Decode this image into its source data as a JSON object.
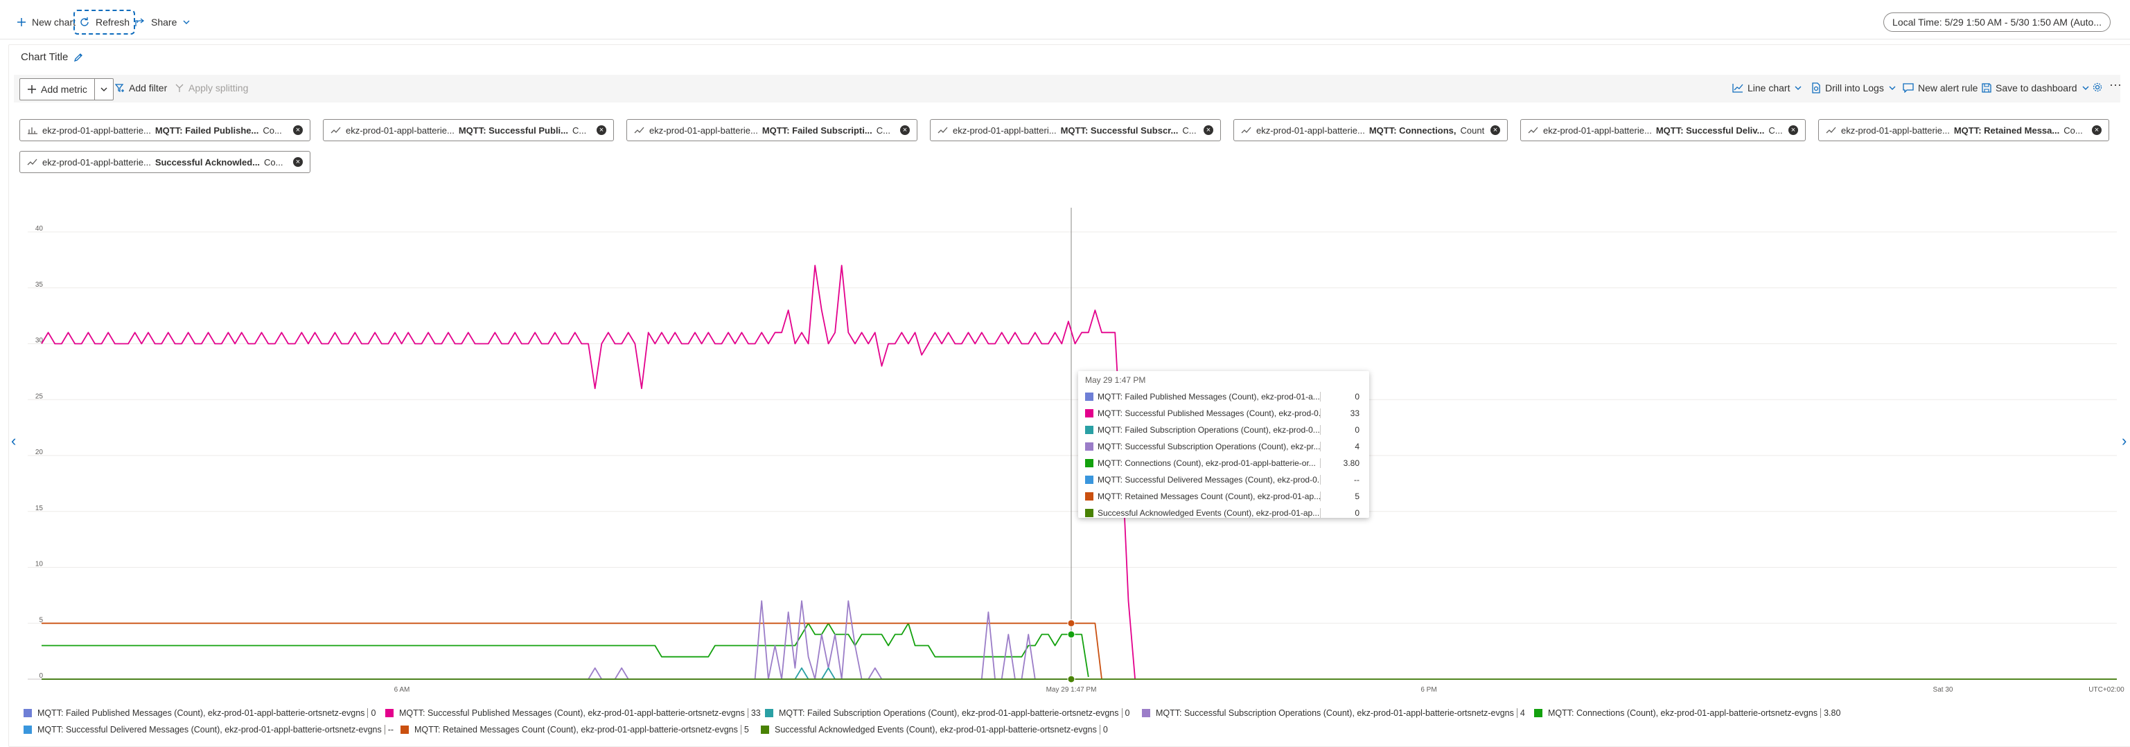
{
  "toolbar": {
    "new_chart": "New chart",
    "refresh": "Refresh",
    "share": "Share",
    "local_time": "Local Time: 5/29 1:50 AM - 5/30 1:50 AM (Auto..."
  },
  "chart": {
    "title": "Chart Title"
  },
  "commands": {
    "add_metric": "Add metric",
    "add_filter": "Add filter",
    "apply_splitting": "Apply splitting",
    "line_chart": "Line chart",
    "drill_into_logs": "Drill into Logs",
    "new_alert_rule": "New alert rule",
    "save_to_dashboard": "Save to dashboard"
  },
  "metric_pills": [
    {
      "source": "ekz-prod-01-appl-batterie...",
      "metric": "MQTT: Failed Publishe...",
      "agg": "Co...",
      "icon": "metric-bar-icon"
    },
    {
      "source": "ekz-prod-01-appl-batterie...",
      "metric": "MQTT: Successful Publi...",
      "agg": "C...",
      "icon": "metric-line-icon"
    },
    {
      "source": "ekz-prod-01-appl-batterie...",
      "metric": "MQTT: Failed Subscripti...",
      "agg": "C...",
      "icon": "metric-line-icon"
    },
    {
      "source": "ekz-prod-01-appl-batteri...",
      "metric": "MQTT: Successful Subscr...",
      "agg": "C...",
      "icon": "metric-line-icon"
    },
    {
      "source": "ekz-prod-01-appl-batterie...",
      "metric": "MQTT: Connections,",
      "agg": "Count",
      "icon": "metric-line-icon"
    },
    {
      "source": "ekz-prod-01-appl-batterie...",
      "metric": "MQTT: Successful Deliv...",
      "agg": "C...",
      "icon": "metric-line-icon"
    },
    {
      "source": "ekz-prod-01-appl-batterie...",
      "metric": "MQTT: Retained Messa...",
      "agg": "Co...",
      "icon": "metric-line-icon"
    },
    {
      "source": "ekz-prod-01-appl-batterie...",
      "metric": "Successful Acknowled...",
      "agg": "Co...",
      "icon": "metric-line-icon"
    }
  ],
  "colors": {
    "failed_published": "#6e7fd6",
    "successful_published": "#e3008c",
    "failed_subscription": "#2aa0a4",
    "successful_subscription": "#9b7dc8",
    "connections": "#13a10e",
    "successful_delivered": "#3a96dd",
    "retained": "#ca5010",
    "acknowledged": "#498205",
    "accent": "#0f6cbd"
  },
  "chart_data": {
    "type": "line",
    "y_ticks": [
      "0",
      "5",
      "10",
      "15",
      "20",
      "25",
      "30",
      "35",
      "40"
    ],
    "x_ticks": [
      "6 AM",
      "May 29 1:47 PM",
      "6 PM",
      "Sat 30",
      "UTC+02:00"
    ],
    "ylim": [
      0,
      42
    ],
    "grid": true,
    "hover_x": "May 29 1:47 PM",
    "series": [
      {
        "name": "MQTT: Successful Published Messages (Count), ekz-prod-01-appl-batterie-ortsnetz-evgns",
        "color": "#e3008c",
        "values": [
          30,
          31,
          30,
          30,
          31,
          30,
          30,
          31,
          30,
          30,
          31,
          30,
          30,
          30,
          31,
          30,
          31,
          30,
          30,
          31,
          30,
          30,
          31,
          30,
          30,
          31,
          30,
          30,
          31,
          30,
          31,
          30,
          30,
          31,
          30,
          30,
          31,
          30,
          30,
          31,
          30,
          31,
          30,
          30,
          31,
          30,
          30,
          31,
          30,
          30,
          31,
          30,
          30,
          31,
          30,
          31,
          30,
          30,
          31,
          30,
          30,
          31,
          30,
          30,
          31,
          30,
          30,
          30,
          31,
          30,
          30,
          31,
          30,
          30,
          31,
          30,
          30,
          31,
          30,
          30,
          31,
          30,
          30,
          26,
          30,
          31,
          30,
          30,
          31,
          30,
          26,
          31,
          30,
          31,
          30,
          31,
          30,
          30,
          31,
          30,
          31,
          30,
          30,
          31,
          30,
          31,
          30,
          30,
          31,
          30,
          31,
          31,
          33,
          30,
          31,
          30,
          37,
          33,
          30,
          31,
          37,
          31,
          30,
          31,
          30,
          31,
          28,
          30,
          30,
          31,
          30,
          31,
          29,
          30,
          31,
          30,
          31,
          30,
          30,
          31,
          30,
          31,
          30,
          30,
          31,
          30,
          31,
          30,
          30,
          31,
          30,
          30,
          31,
          30,
          32,
          30,
          31,
          31,
          33,
          31,
          31,
          31,
          20,
          7,
          0
        ]
      },
      {
        "name": "MQTT: Connections (Count), ekz-prod-01-appl-batterie-ortsnetz-evgns",
        "color": "#13a10e",
        "values": [
          3,
          3,
          3,
          3,
          3,
          3,
          3,
          3,
          3,
          3,
          3,
          3,
          3,
          3,
          3,
          3,
          3,
          3,
          3,
          3,
          3,
          3,
          3,
          3,
          3,
          3,
          3,
          3,
          3,
          3,
          3,
          3,
          3,
          3,
          3,
          3,
          3,
          3,
          3,
          3,
          3,
          3,
          3,
          3,
          3,
          3,
          3,
          3,
          3,
          3,
          3,
          3,
          3,
          3,
          3,
          3,
          3,
          3,
          3,
          3,
          3,
          3,
          3,
          3,
          3,
          3,
          3,
          3,
          3,
          3,
          3,
          3,
          3,
          3,
          3,
          3,
          3,
          3,
          3,
          3,
          3,
          3,
          3,
          3,
          3,
          3,
          3,
          3,
          3,
          3,
          3,
          3,
          3,
          2,
          2,
          2,
          2,
          2,
          2,
          2,
          2,
          3,
          3,
          3,
          3,
          3,
          3,
          3,
          3,
          3,
          3,
          3,
          3,
          3,
          4,
          5,
          4,
          4,
          5,
          4,
          4,
          4,
          3,
          4,
          4,
          4,
          4,
          3,
          4,
          4,
          5,
          3,
          3,
          3,
          2,
          2,
          2,
          2,
          2,
          2,
          2,
          2,
          2,
          2,
          2,
          2,
          2,
          2,
          3,
          3,
          4,
          4,
          3,
          4,
          4,
          4,
          4,
          0.2
        ]
      },
      {
        "name": "MQTT: Retained Messages Count (Count), ekz-prod-01-appl-batterie-ortsnetz-evgns",
        "color": "#ca5010",
        "values": [
          5,
          5,
          5,
          5,
          5,
          5,
          5,
          5,
          5,
          5,
          5,
          5,
          5,
          5,
          5,
          5,
          5,
          5,
          5,
          5,
          5,
          5,
          5,
          5,
          5,
          5,
          5,
          5,
          5,
          5,
          5,
          5,
          5,
          5,
          5,
          5,
          5,
          5,
          5,
          5,
          5,
          5,
          5,
          5,
          5,
          5,
          5,
          5,
          5,
          5,
          5,
          5,
          5,
          5,
          5,
          5,
          5,
          5,
          5,
          5,
          5,
          5,
          5,
          5,
          5,
          5,
          5,
          5,
          5,
          5,
          5,
          5,
          5,
          5,
          5,
          5,
          5,
          5,
          5,
          5,
          5,
          5,
          5,
          5,
          5,
          5,
          5,
          5,
          5,
          5,
          5,
          5,
          5,
          5,
          5,
          5,
          5,
          5,
          5,
          5,
          5,
          5,
          5,
          5,
          5,
          5,
          5,
          5,
          5,
          5,
          5,
          5,
          5,
          5,
          5,
          5,
          5,
          5,
          5,
          5,
          5,
          5,
          5,
          5,
          5,
          5,
          5,
          5,
          5,
          5,
          5,
          5,
          5,
          5,
          5,
          5,
          5,
          5,
          5,
          5,
          5,
          5,
          5,
          5,
          5,
          5,
          5,
          5,
          5,
          5,
          5,
          5,
          5,
          5,
          5,
          5,
          5,
          5,
          5,
          0
        ]
      },
      {
        "name": "MQTT: Successful Subscription Operations (Count), ekz-prod-01-appl-batterie-ortsnetz-evgns",
        "color": "#9b7dc8",
        "values": [
          0,
          0,
          0,
          0,
          0,
          0,
          0,
          0,
          0,
          0,
          0,
          0,
          0,
          0,
          0,
          0,
          0,
          0,
          0,
          0,
          0,
          0,
          0,
          0,
          0,
          0,
          0,
          0,
          0,
          0,
          0,
          0,
          0,
          0,
          0,
          0,
          0,
          0,
          0,
          0,
          0,
          0,
          0,
          0,
          0,
          0,
          0,
          0,
          0,
          0,
          0,
          0,
          0,
          0,
          0,
          0,
          0,
          0,
          0,
          0,
          0,
          0,
          0,
          0,
          0,
          0,
          0,
          0,
          0,
          0,
          0,
          0,
          0,
          0,
          0,
          0,
          0,
          0,
          0,
          0,
          0,
          0,
          0,
          1,
          0,
          0,
          0,
          1,
          0,
          0,
          0,
          0,
          0,
          0,
          0,
          0,
          0,
          0,
          0,
          0,
          0,
          0,
          0,
          0,
          0,
          0,
          0,
          0,
          7,
          0,
          3,
          0,
          6,
          1,
          7,
          2,
          0,
          4,
          1,
          4,
          0,
          7,
          3,
          0,
          0,
          1,
          0,
          0,
          0,
          0,
          0,
          0,
          0,
          0,
          0,
          0,
          0,
          0,
          0,
          0,
          0,
          0,
          6,
          0,
          0,
          4,
          0,
          0,
          4,
          0,
          0,
          0
        ]
      },
      {
        "name": "MQTT: Failed Subscription Operations (Count), ekz-prod-01-appl-batterie-ortsnetz-evgns",
        "color": "#2aa0a4",
        "values": [
          0,
          0,
          0,
          0,
          0,
          0,
          0,
          0,
          0,
          0,
          0,
          0,
          0,
          0,
          0,
          0,
          0,
          0,
          0,
          0,
          0,
          0,
          0,
          0,
          0,
          0,
          0,
          0,
          0,
          0,
          0,
          0,
          0,
          0,
          0,
          0,
          0,
          0,
          0,
          0,
          0,
          0,
          0,
          0,
          0,
          0,
          0,
          0,
          0,
          0,
          0,
          0,
          0,
          0,
          0,
          0,
          0,
          0,
          0,
          0,
          0,
          0,
          0,
          0,
          0,
          0,
          0,
          0,
          0,
          0,
          0,
          0,
          0,
          0,
          0,
          0,
          0,
          0,
          0,
          0,
          0,
          0,
          0,
          0,
          0,
          0,
          0,
          0,
          0,
          0,
          0,
          0,
          0,
          0,
          0,
          0,
          0,
          0,
          0,
          0,
          0,
          0,
          0,
          0,
          0,
          0,
          0,
          0,
          0,
          0,
          0,
          0,
          0,
          0,
          1,
          0,
          0,
          0,
          1,
          0,
          0,
          0,
          0,
          0,
          0,
          0,
          0,
          0,
          0,
          0,
          0,
          0,
          0,
          0,
          0,
          0,
          0,
          0,
          0,
          0,
          0,
          0,
          0,
          0,
          0,
          0,
          0,
          0,
          0,
          0,
          0,
          0,
          0,
          0,
          0
        ]
      },
      {
        "name": "MQTT: Failed Published Messages (Count), ekz-prod-01-appl-batterie-ortsnetz-evgns",
        "color": "#6e7fd6",
        "values": [
          0
        ]
      },
      {
        "name": "MQTT: Successful Delivered Messages (Count), ekz-prod-01-appl-batterie-ortsnetz-evgns",
        "color": "#3a96dd",
        "values": []
      },
      {
        "name": "Successful Acknowledged Events (Count), ekz-prod-01-appl-batterie-ortsnetz-evgns",
        "color": "#498205",
        "values": [
          0
        ]
      }
    ]
  },
  "tooltip": {
    "time": "May 29 1:47 PM",
    "rows": [
      {
        "name": "MQTT: Failed Published Messages (Count), ekz-prod-01-a...",
        "value": "0",
        "color": "#6e7fd6"
      },
      {
        "name": "MQTT: Successful Published Messages (Count), ekz-prod-0...",
        "value": "33",
        "color": "#e3008c"
      },
      {
        "name": "MQTT: Failed Subscription Operations (Count), ekz-prod-0...",
        "value": "0",
        "color": "#2aa0a4"
      },
      {
        "name": "MQTT: Successful Subscription Operations (Count), ekz-pr...",
        "value": "4",
        "color": "#9b7dc8"
      },
      {
        "name": "MQTT: Connections (Count), ekz-prod-01-appl-batterie-or...",
        "value": "3.80",
        "color": "#13a10e"
      },
      {
        "name": "MQTT: Successful Delivered Messages (Count), ekz-prod-0...",
        "value": "--",
        "color": "#3a96dd"
      },
      {
        "name": "MQTT: Retained Messages Count (Count), ekz-prod-01-ap...",
        "value": "5",
        "color": "#ca5010"
      },
      {
        "name": "Successful Acknowledged Events (Count), ekz-prod-01-ap...",
        "value": "0",
        "color": "#498205"
      }
    ]
  },
  "legend": [
    {
      "label": "MQTT: Failed Published Messages (Count), ekz-prod-01-appl-batterie-ortsnetz-evgns",
      "value": "0",
      "color": "#6e7fd6"
    },
    {
      "label": "MQTT: Successful Published Messages (Count), ekz-prod-01-appl-batterie-ortsnetz-evgns",
      "value": "33",
      "color": "#e3008c"
    },
    {
      "label": "MQTT: Failed Subscription Operations (Count), ekz-prod-01-appl-batterie-ortsnetz-evgns",
      "value": "0",
      "color": "#2aa0a4"
    },
    {
      "label": "MQTT: Successful Subscription Operations (Count), ekz-prod-01-appl-batterie-ortsnetz-evgns",
      "value": "4",
      "color": "#9b7dc8"
    },
    {
      "label": "MQTT: Connections (Count), ekz-prod-01-appl-batterie-ortsnetz-evgns",
      "value": "3.80",
      "color": "#13a10e"
    },
    {
      "label": "MQTT: Successful Delivered Messages (Count), ekz-prod-01-appl-batterie-ortsnetz-evgns",
      "value": "--",
      "color": "#3a96dd"
    },
    {
      "label": "MQTT: Retained Messages Count (Count), ekz-prod-01-appl-batterie-ortsnetz-evgns",
      "value": "5",
      "color": "#ca5010"
    },
    {
      "label": "Successful Acknowledged Events (Count), ekz-prod-01-appl-batterie-ortsnetz-evgns",
      "value": "0",
      "color": "#498205"
    }
  ]
}
